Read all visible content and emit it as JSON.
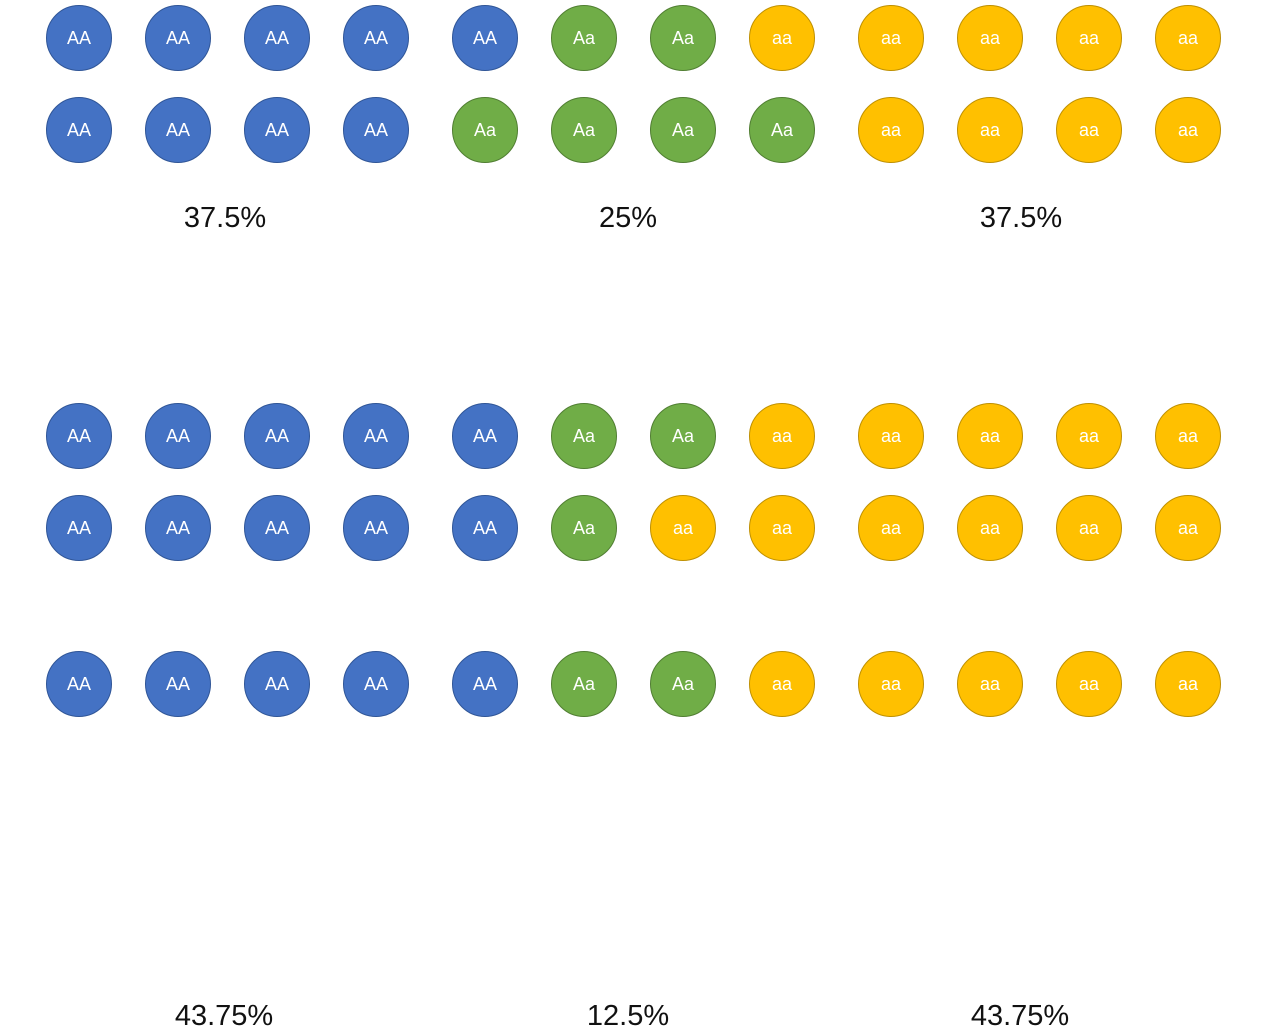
{
  "colors": {
    "AA": "#4472c4",
    "Aa": "#70ad47",
    "aa": "#ffc000"
  },
  "sections": [
    {
      "groups": [
        {
          "percentage": "37.5%",
          "rows": [
            [
              "AA",
              "AA",
              "AA",
              "AA"
            ],
            [
              "AA",
              "AA",
              "AA",
              "AA"
            ]
          ]
        },
        {
          "percentage": "25%",
          "rows": [
            [
              "AA",
              "Aa",
              "Aa",
              "aa"
            ],
            [
              "Aa",
              "Aa",
              "Aa",
              "Aa"
            ]
          ]
        },
        {
          "percentage": "37.5%",
          "rows": [
            [
              "aa",
              "aa",
              "aa",
              "aa"
            ],
            [
              "aa",
              "aa",
              "aa",
              "aa"
            ]
          ]
        }
      ]
    },
    {
      "groups": [
        {
          "percentage": "43.75%",
          "rows": [
            [
              "AA",
              "AA",
              "AA",
              "AA"
            ],
            [
              "AA",
              "AA",
              "AA",
              "AA"
            ]
          ]
        },
        {
          "percentage": "12.5%",
          "rows": [
            [
              "AA",
              "Aa",
              "Aa",
              "aa"
            ],
            [
              "AA",
              "Aa",
              "aa",
              "aa"
            ]
          ]
        },
        {
          "percentage": "43.75%",
          "rows": [
            [
              "aa",
              "aa",
              "aa",
              "aa"
            ],
            [
              "aa",
              "aa",
              "aa",
              "aa"
            ]
          ]
        }
      ]
    },
    {
      "groups": [
        {
          "percentage": "",
          "rows": [
            [
              "AA",
              "AA",
              "AA",
              "AA"
            ]
          ]
        },
        {
          "percentage": "",
          "rows": [
            [
              "AA",
              "Aa",
              "Aa",
              "aa"
            ]
          ]
        },
        {
          "percentage": "",
          "rows": [
            [
              "aa",
              "aa",
              "aa",
              "aa"
            ]
          ]
        }
      ]
    }
  ]
}
